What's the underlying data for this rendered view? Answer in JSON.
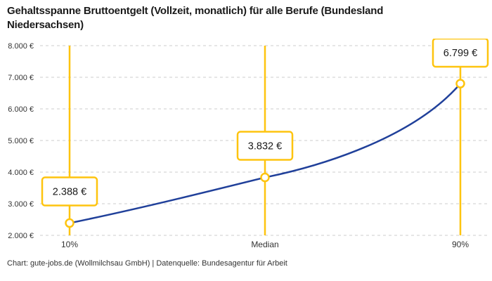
{
  "title_lines": [
    "Gehaltsspanne Bruttoentgelt (Vollzeit, monatlich) für alle Berufe (Bundesland",
    "Niedersachsen)"
  ],
  "source": "Chart: gute-jobs.de (Wollmilchsau GmbH) | Datenquelle: Bundesagentur für Arbeit",
  "colors": {
    "accent_yellow": "#FEC40F",
    "curve_blue": "#20409A",
    "grid_gray": "#CCCCCC",
    "text_dark": "#1A1A1A",
    "text_axis": "#333333"
  },
  "chart_data": {
    "type": "line",
    "title": "Gehaltsspanne Bruttoentgelt (Vollzeit, monatlich) für alle Berufe (Bundesland Niedersachsen)",
    "categories": [
      "10%",
      "Median",
      "90%"
    ],
    "values": [
      2388,
      3832,
      6799
    ],
    "value_labels": [
      "2.388 €",
      "3.832 €",
      "6.799 €"
    ],
    "unit": "EUR/month gross",
    "ylim": [
      2000,
      8000
    ],
    "y_tick_values": [
      8000,
      7000,
      6000,
      5000,
      4000,
      3000,
      2000
    ],
    "y_tick_labels": [
      "8.000 €",
      "7.000 €",
      "6.000 €",
      "5.000 €",
      "4.000 €",
      "3.000 €",
      "2.000 €"
    ],
    "grid": "dashed horizontal gridlines",
    "legend": "none",
    "annotation_style": "yellow vertical range lines at each category with white value boxes and circle markers",
    "source": "Chart: gute-jobs.de (Wollmilchsau GmbH) | Datenquelle: Bundesagentur für Arbeit"
  }
}
